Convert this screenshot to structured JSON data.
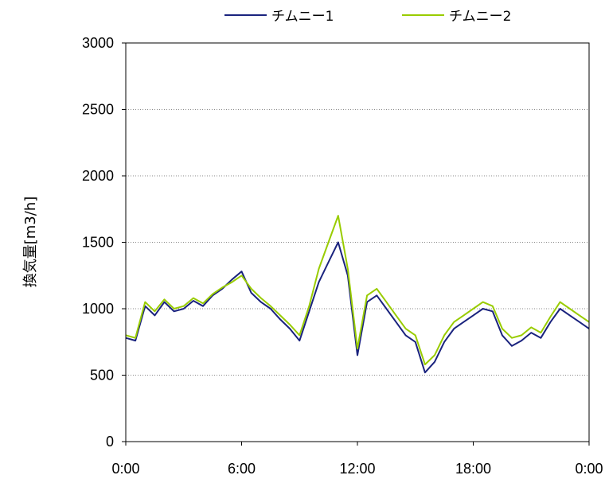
{
  "chart_data": {
    "type": "line",
    "title": "",
    "xlabel": "",
    "ylabel": "換気量[m3/h]",
    "ylim": [
      0,
      3000
    ],
    "yticks": [
      0,
      500,
      1000,
      1500,
      2000,
      2500,
      3000
    ],
    "xlim_hours": [
      0,
      24
    ],
    "xtick_labels": [
      "0:00",
      "6:00",
      "12:00",
      "18:00",
      "0:00"
    ],
    "x_unit": "hours",
    "grid": "horizontal dotted",
    "legend_position": "top",
    "series": [
      {
        "name": "チムニー1",
        "color": "#1a237e",
        "x": [
          0,
          0.5,
          1,
          1.5,
          2,
          2.5,
          3,
          3.5,
          4,
          4.5,
          5,
          5.5,
          6,
          6.5,
          7,
          7.5,
          8,
          8.5,
          9,
          9.5,
          10,
          10.5,
          11,
          11.5,
          12,
          12.5,
          13,
          13.5,
          14,
          14.5,
          15,
          15.5,
          16,
          16.5,
          17,
          17.5,
          18,
          18.5,
          19,
          19.5,
          20,
          20.5,
          21,
          21.5,
          22,
          22.5,
          23,
          23.5,
          24
        ],
        "values": [
          780,
          760,
          1020,
          950,
          1050,
          980,
          1000,
          1060,
          1020,
          1100,
          1150,
          1220,
          1280,
          1120,
          1050,
          1000,
          920,
          850,
          760,
          980,
          1200,
          1350,
          1500,
          1250,
          650,
          1050,
          1100,
          1000,
          900,
          800,
          750,
          520,
          600,
          750,
          850,
          900,
          950,
          1000,
          980,
          800,
          720,
          760,
          820,
          780,
          900,
          1000,
          950,
          900,
          850
        ]
      },
      {
        "name": "チムニー2",
        "color": "#99cc00",
        "x": [
          0,
          0.5,
          1,
          1.5,
          2,
          2.5,
          3,
          3.5,
          4,
          4.5,
          5,
          5.5,
          6,
          6.5,
          7,
          7.5,
          8,
          8.5,
          9,
          9.5,
          10,
          10.5,
          11,
          11.5,
          12,
          12.5,
          13,
          13.5,
          14,
          14.5,
          15,
          15.5,
          16,
          16.5,
          17,
          17.5,
          18,
          18.5,
          19,
          19.5,
          20,
          20.5,
          21,
          21.5,
          22,
          22.5,
          23,
          23.5,
          24
        ],
        "values": [
          800,
          780,
          1050,
          980,
          1070,
          1000,
          1020,
          1080,
          1040,
          1110,
          1160,
          1200,
          1250,
          1150,
          1080,
          1020,
          950,
          880,
          800,
          1020,
          1300,
          1500,
          1700,
          1300,
          700,
          1100,
          1150,
          1050,
          950,
          850,
          800,
          580,
          650,
          800,
          900,
          950,
          1000,
          1050,
          1020,
          850,
          780,
          800,
          860,
          820,
          940,
          1050,
          1000,
          950,
          900
        ]
      }
    ]
  }
}
